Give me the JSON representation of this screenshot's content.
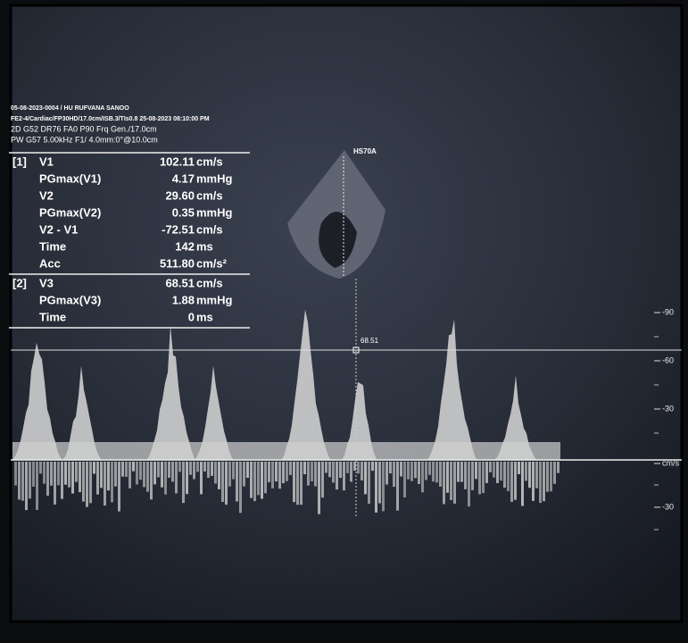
{
  "header": {
    "lines": [
      "05-08-2023-0004 / HU RUFVANA SANOO",
      "FE2-4/Cardiac/FP30HD/17.0cm/ISB.3/TIs0.8 25-08-2023 08:10:00 PM",
      "2D G52 DR76 FA0 P90 Frq Gen./17.0cm",
      "PW G57 5.00kHz F1/ 4.0mm:0°@10.0cm"
    ]
  },
  "probe": "HS70A",
  "cursor_label": "68.51",
  "measurements": [
    {
      "group": "[1]",
      "rows": [
        {
          "label": "V1",
          "value": "102.11",
          "unit": "cm/s"
        },
        {
          "label": "PGmax(V1)",
          "value": "4.17",
          "unit": "mmHg"
        },
        {
          "label": "V2",
          "value": "29.60",
          "unit": "cm/s"
        },
        {
          "label": "PGmax(V2)",
          "value": "0.35",
          "unit": "mmHg"
        },
        {
          "label": "V2 - V1",
          "value": "-72.51",
          "unit": "cm/s"
        },
        {
          "label": "Time",
          "value": "142",
          "unit": "ms"
        },
        {
          "label": "Acc",
          "value": "511.80",
          "unit": "cm/s²"
        }
      ]
    },
    {
      "group": "[2]",
      "rows": [
        {
          "label": "V3",
          "value": "68.51",
          "unit": "cm/s"
        },
        {
          "label": "PGmax(V3)",
          "value": "1.88",
          "unit": "mmHg"
        },
        {
          "label": "Time",
          "value": "0",
          "unit": "ms"
        }
      ]
    }
  ],
  "scale_labels": [
    "-90",
    "-60",
    "-30",
    "cm/s",
    "-30"
  ]
}
